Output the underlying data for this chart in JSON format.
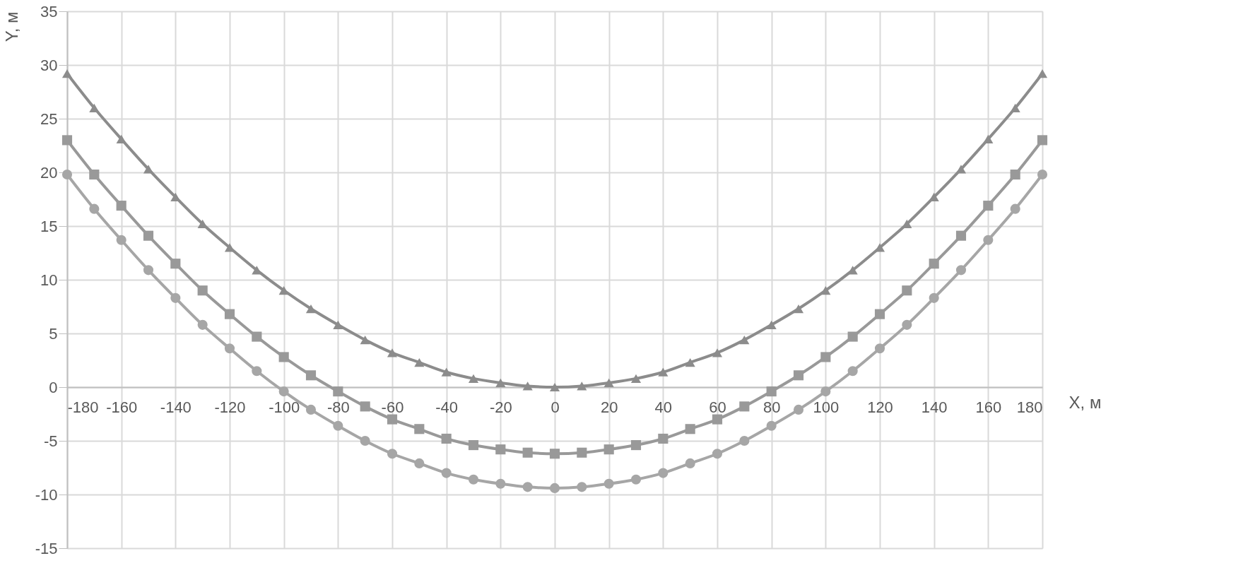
{
  "chart_data": {
    "type": "line",
    "xlabel": "X, м",
    "ylabel": "Y, м",
    "x": [
      -180,
      -170,
      -160,
      -150,
      -140,
      -130,
      -120,
      -110,
      -100,
      -90,
      -80,
      -70,
      -60,
      -50,
      -40,
      -30,
      -20,
      -10,
      0,
      10,
      20,
      30,
      40,
      50,
      60,
      70,
      80,
      90,
      100,
      110,
      120,
      130,
      140,
      150,
      160,
      170,
      180
    ],
    "series": [
      {
        "color": "#999999",
        "marker": "square",
        "values": [
          23.0,
          19.8,
          16.9,
          14.1,
          11.5,
          9.0,
          6.8,
          4.7,
          2.8,
          1.1,
          -0.4,
          -1.8,
          -3.0,
          -3.9,
          -4.8,
          -5.4,
          -5.8,
          -6.1,
          -6.2,
          -6.1,
          -5.8,
          -5.4,
          -4.8,
          -3.9,
          -3.0,
          -1.8,
          -0.4,
          1.1,
          2.8,
          4.7,
          6.8,
          9.0,
          11.5,
          14.1,
          16.9,
          19.8,
          23.0
        ]
      },
      {
        "color": "#8c8c8c",
        "marker": "triangle",
        "values": [
          29.2,
          26.0,
          23.1,
          20.3,
          17.7,
          15.2,
          13.0,
          10.9,
          9.0,
          7.3,
          5.8,
          4.4,
          3.2,
          2.3,
          1.4,
          0.8,
          0.4,
          0.1,
          0.0,
          0.1,
          0.4,
          0.8,
          1.4,
          2.3,
          3.2,
          4.4,
          5.8,
          7.3,
          9.0,
          10.9,
          13.0,
          15.2,
          17.7,
          20.3,
          23.1,
          26.0,
          29.2
        ]
      },
      {
        "color": "#a6a6a6",
        "marker": "circle",
        "values": [
          19.8,
          16.6,
          13.7,
          10.9,
          8.3,
          5.8,
          3.6,
          1.5,
          -0.4,
          -2.1,
          -3.6,
          -5.0,
          -6.2,
          -7.1,
          -8.0,
          -8.6,
          -9.0,
          -9.3,
          -9.4,
          -9.3,
          -9.0,
          -8.6,
          -8.0,
          -7.1,
          -6.2,
          -5.0,
          -3.6,
          -2.1,
          -0.4,
          1.5,
          3.6,
          5.8,
          8.3,
          10.9,
          13.7,
          16.6,
          19.8
        ]
      }
    ],
    "xlim": [
      -180,
      180
    ],
    "xticks": [
      -180,
      -160,
      -140,
      -120,
      -100,
      -80,
      -60,
      -40,
      -20,
      0,
      20,
      40,
      60,
      80,
      100,
      120,
      140,
      160,
      180
    ],
    "ylim": [
      -15,
      35
    ],
    "yticks": [
      -15,
      -10,
      -5,
      0,
      5,
      10,
      15,
      20,
      25,
      30,
      35
    ],
    "grid": true,
    "line_style": "solid"
  }
}
